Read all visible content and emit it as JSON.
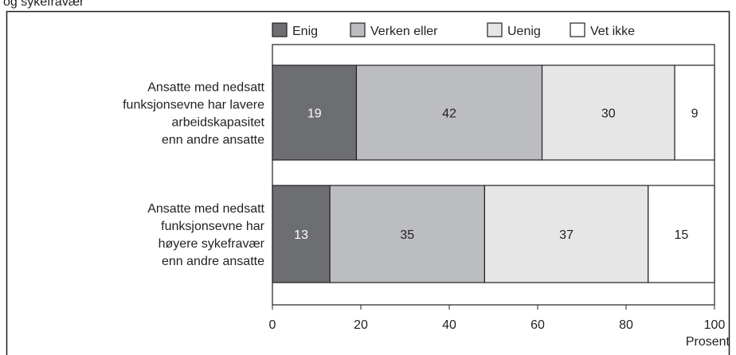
{
  "chart_data": {
    "type": "stacked_barh",
    "title": "og sykefravær",
    "categories": [
      "Ansatte med nedsatt\nfunksjonsevne har lavere\narbeidskapasitet\nenn andre ansatte",
      "Ansatte med nedsatt\nfunksjonsevne har\nhøyere sykefravær\nenn andre ansatte"
    ],
    "series": [
      {
        "name": "Enig",
        "color": "#6d6e71",
        "values": [
          19,
          13
        ]
      },
      {
        "name": "Verken eller",
        "color": "#bcbdc0",
        "values": [
          42,
          35
        ]
      },
      {
        "name": "Uenig",
        "color": "#e6e6e7",
        "values": [
          30,
          37
        ]
      },
      {
        "name": "Vet ikke",
        "color": "#ffffff",
        "values": [
          9,
          15
        ]
      }
    ],
    "xlabel": "Prosent",
    "xlim": [
      0,
      100
    ],
    "xticks": [
      0,
      20,
      40,
      60,
      80,
      100
    ],
    "legend": "top"
  }
}
